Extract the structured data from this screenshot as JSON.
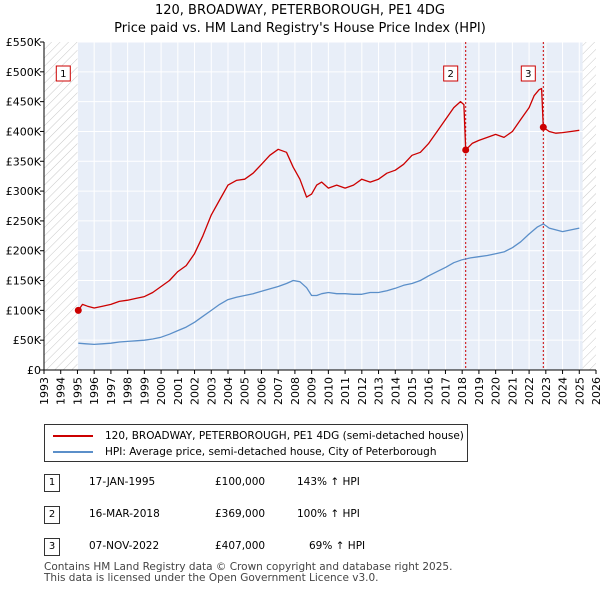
{
  "title_line1": "120, BROADWAY, PETERBOROUGH, PE1 4DG",
  "title_line2": "Price paid vs. HM Land Registry's House Price Index (HPI)",
  "chart_data": {
    "type": "line",
    "xlim": [
      1993,
      2026
    ],
    "ylim": [
      0,
      550000
    ],
    "x_ticks": [
      1993,
      1994,
      1995,
      1996,
      1997,
      1998,
      1999,
      2000,
      2001,
      2002,
      2003,
      2004,
      2005,
      2006,
      2007,
      2008,
      2009,
      2010,
      2011,
      2012,
      2013,
      2014,
      2015,
      2016,
      2017,
      2018,
      2019,
      2020,
      2021,
      2022,
      2023,
      2024,
      2025,
      2026
    ],
    "x_tick_labels": [
      "1993",
      "1994",
      "1995",
      "1996",
      "1997",
      "1998",
      "1999",
      "2000",
      "2001",
      "2002",
      "2003",
      "2004",
      "2005",
      "2006",
      "2007",
      "2008",
      "2009",
      "2010",
      "2011",
      "2012",
      "2013",
      "2014",
      "2015",
      "2016",
      "2017",
      "2018",
      "2019",
      "2020",
      "2021",
      "2022",
      "2023",
      "2024",
      "2025",
      "2026"
    ],
    "y_ticks": [
      0,
      50000,
      100000,
      150000,
      200000,
      250000,
      300000,
      350000,
      400000,
      450000,
      500000,
      550000
    ],
    "y_tick_labels": [
      "£0",
      "£50K",
      "£100K",
      "£150K",
      "£200K",
      "£250K",
      "£300K",
      "£350K",
      "£400K",
      "£450K",
      "£500K",
      "£550K"
    ],
    "hatched_before": 1995.0,
    "hatched_after": 2025.2,
    "series": [
      {
        "name": "120, BROADWAY, PETERBOROUGH, PE1 4DG (semi-detached house)",
        "color": "#cc0000",
        "x": [
          1995.05,
          1995.3,
          1995.6,
          1996.0,
          1996.5,
          1997.0,
          1997.5,
          1998.0,
          1998.5,
          1999.0,
          1999.5,
          2000.0,
          2000.5,
          2001.0,
          2001.5,
          2002.0,
          2002.5,
          2003.0,
          2003.5,
          2004.0,
          2004.5,
          2005.0,
          2005.5,
          2006.0,
          2006.5,
          2007.0,
          2007.5,
          2007.9,
          2008.3,
          2008.7,
          2009.0,
          2009.3,
          2009.6,
          2010.0,
          2010.5,
          2011.0,
          2011.5,
          2012.0,
          2012.5,
          2013.0,
          2013.5,
          2014.0,
          2014.5,
          2015.0,
          2015.5,
          2016.0,
          2016.5,
          2017.0,
          2017.5,
          2017.9,
          2018.1,
          2018.21,
          2018.6,
          2019.0,
          2019.5,
          2020.0,
          2020.5,
          2021.0,
          2021.5,
          2022.0,
          2022.3,
          2022.6,
          2022.75,
          2022.85,
          2023.2,
          2023.6,
          2024.0,
          2024.5,
          2025.0
        ],
        "values": [
          100000,
          110000,
          107000,
          104000,
          107000,
          110000,
          115000,
          117000,
          120000,
          123000,
          130000,
          140000,
          150000,
          165000,
          175000,
          195000,
          225000,
          260000,
          285000,
          310000,
          318000,
          320000,
          330000,
          345000,
          360000,
          370000,
          365000,
          340000,
          320000,
          290000,
          295000,
          310000,
          315000,
          305000,
          310000,
          305000,
          310000,
          320000,
          315000,
          320000,
          330000,
          335000,
          345000,
          360000,
          365000,
          380000,
          400000,
          420000,
          440000,
          450000,
          445000,
          369000,
          380000,
          385000,
          390000,
          395000,
          390000,
          400000,
          420000,
          440000,
          460000,
          470000,
          472000,
          407000,
          400000,
          397000,
          398000,
          400000,
          402000
        ]
      },
      {
        "name": "HPI: Average price, semi-detached house, City of Peterborough",
        "color": "#5b8fc9",
        "x": [
          1995.05,
          1995.5,
          1996.0,
          1996.5,
          1997.0,
          1997.5,
          1998.0,
          1998.5,
          1999.0,
          1999.5,
          2000.0,
          2000.5,
          2001.0,
          2001.5,
          2002.0,
          2002.5,
          2003.0,
          2003.5,
          2004.0,
          2004.5,
          2005.0,
          2005.5,
          2006.0,
          2006.5,
          2007.0,
          2007.5,
          2007.9,
          2008.3,
          2008.7,
          2009.0,
          2009.3,
          2009.6,
          2010.0,
          2010.5,
          2011.0,
          2011.5,
          2012.0,
          2012.5,
          2013.0,
          2013.5,
          2014.0,
          2014.5,
          2015.0,
          2015.5,
          2016.0,
          2016.5,
          2017.0,
          2017.5,
          2018.0,
          2018.5,
          2019.0,
          2019.5,
          2020.0,
          2020.5,
          2021.0,
          2021.5,
          2022.0,
          2022.5,
          2022.85,
          2023.2,
          2023.6,
          2024.0,
          2024.5,
          2025.0
        ],
        "values": [
          45000,
          44000,
          43000,
          44000,
          45000,
          47000,
          48000,
          49000,
          50000,
          52000,
          55000,
          60000,
          66000,
          72000,
          80000,
          90000,
          100000,
          110000,
          118000,
          122000,
          125000,
          128000,
          132000,
          136000,
          140000,
          145000,
          150000,
          148000,
          138000,
          125000,
          125000,
          128000,
          130000,
          128000,
          128000,
          127000,
          127000,
          130000,
          130000,
          133000,
          137000,
          142000,
          145000,
          150000,
          158000,
          165000,
          172000,
          180000,
          185000,
          188000,
          190000,
          192000,
          195000,
          198000,
          205000,
          215000,
          228000,
          240000,
          245000,
          238000,
          235000,
          232000,
          235000,
          238000
        ]
      }
    ],
    "markers": [
      {
        "label": "1",
        "x": 1995.05,
        "y": 100000
      },
      {
        "label": "2",
        "x": 2018.21,
        "y": 369000
      },
      {
        "label": "3",
        "x": 2022.85,
        "y": 407000
      }
    ]
  },
  "legend": {
    "red_label": "120, BROADWAY, PETERBOROUGH, PE1 4DG (semi-detached house)",
    "blue_label": "HPI: Average price, semi-detached house, City of Peterborough"
  },
  "transactions": [
    {
      "num": "1",
      "date": "17-JAN-1995",
      "price": "£100,000",
      "hpi": "143% ↑ HPI"
    },
    {
      "num": "2",
      "date": "16-MAR-2018",
      "price": "£369,000",
      "hpi": "100% ↑ HPI"
    },
    {
      "num": "3",
      "date": "07-NOV-2022",
      "price": "£407,000",
      "hpi": "69% ↑ HPI"
    }
  ],
  "footer_line1": "Contains HM Land Registry data © Crown copyright and database right 2025.",
  "footer_line2": "This data is licensed under the Open Government Licence v3.0."
}
